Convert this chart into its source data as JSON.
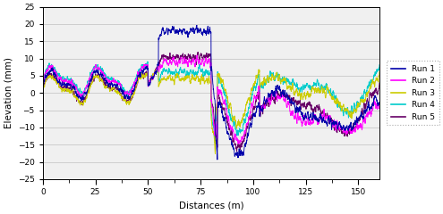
{
  "xlabel": "Distances (m)",
  "ylabel": "Elevation (mm)",
  "xlim": [
    0,
    160
  ],
  "ylim": [
    -25,
    25
  ],
  "xticks": [
    0,
    25,
    50,
    75,
    100,
    125,
    150
  ],
  "yticks": [
    -25,
    -20,
    -15,
    -10,
    -5,
    0,
    5,
    10,
    15,
    20,
    25
  ],
  "legend_labels": [
    "Run 1",
    "Run 2",
    "Run 3",
    "Run 4",
    "Run 5"
  ],
  "colors": [
    "#0000AA",
    "#FF00FF",
    "#CCCC00",
    "#00CCCC",
    "#660066"
  ],
  "linewidth": 0.65,
  "figsize": [
    4.95,
    2.4
  ],
  "dpi": 100,
  "bg_color": "#F0F0F0"
}
